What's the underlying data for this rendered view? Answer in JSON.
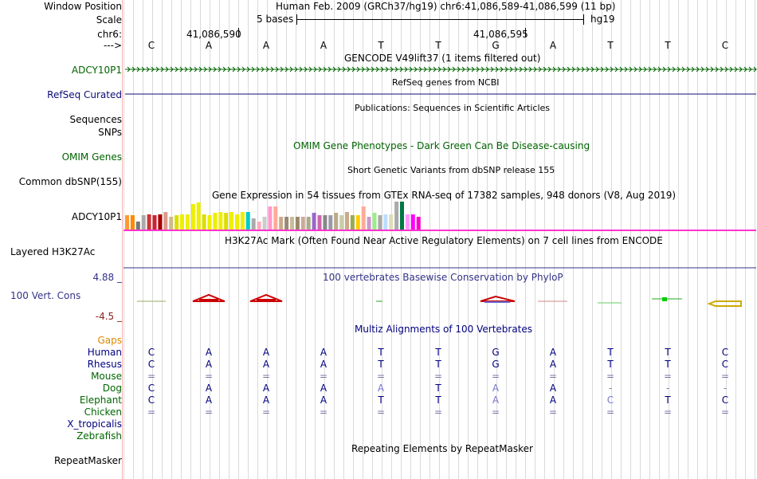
{
  "ruler": {
    "window_position_label": "Window Position",
    "window_position_value": "Human Feb. 2009 (GRCh37/hg19)   chr6:41,086,589-41,086,599 (11 bp)",
    "scale_label": "Scale",
    "scale_value": "5 bases",
    "scale_db": "hg19",
    "chrom_label": "chr6:",
    "coord_left": "41,086,590",
    "coord_right": "41,086,595",
    "strand_label": "--->",
    "bases": [
      "C",
      "A",
      "A",
      "A",
      "T",
      "T",
      "G",
      "A",
      "T",
      "T",
      "C"
    ]
  },
  "tracks": {
    "gencode": {
      "title": "GENCODE V49lift37 (1 items filtered out)",
      "item_label": "ADCY10P1"
    },
    "refseq": {
      "title": "RefSeq genes from NCBI",
      "label": "RefSeq Curated"
    },
    "publications": {
      "title": "Publications: Sequences in Scientific Articles",
      "label_sequences": "Sequences",
      "label_snps": "SNPs"
    },
    "omim": {
      "title": "OMIM Gene Phenotypes - Dark Green Can Be Disease-causing",
      "label": "OMIM Genes"
    },
    "dbsnp": {
      "title": "Short Genetic Variants from dbSNP release 155",
      "label": "Common dbSNP(155)"
    },
    "gtex": {
      "title": "Gene Expression in 54 tissues from GTEx RNA-seq of 17382 samples, 948 donors (V8, Aug 2019)",
      "label": "ADCY10P1",
      "bars": [
        {
          "v": 0.55,
          "c": "#ff9933"
        },
        {
          "v": 0.55,
          "c": "#ff8800"
        },
        {
          "v": 0.3,
          "c": "#777777"
        },
        {
          "v": 0.55,
          "c": "#aaaaaa"
        },
        {
          "v": 0.6,
          "c": "#cc3333"
        },
        {
          "v": 0.55,
          "c": "#cc2233"
        },
        {
          "v": 0.6,
          "c": "#aa0000"
        },
        {
          "v": 0.7,
          "c": "#dd9988"
        },
        {
          "v": 0.5,
          "c": "#ccbb88"
        },
        {
          "v": 0.55,
          "c": "#dddd00"
        },
        {
          "v": 0.6,
          "c": "#eeee00"
        },
        {
          "v": 0.6,
          "c": "#eeee00"
        },
        {
          "v": 1.0,
          "c": "#eeee00"
        },
        {
          "v": 1.05,
          "c": "#eeee00"
        },
        {
          "v": 0.6,
          "c": "#dddd00"
        },
        {
          "v": 0.55,
          "c": "#eeee00"
        },
        {
          "v": 0.65,
          "c": "#eeee00"
        },
        {
          "v": 0.7,
          "c": "#eeee00"
        },
        {
          "v": 0.65,
          "c": "#dddd00"
        },
        {
          "v": 0.7,
          "c": "#eeee00"
        },
        {
          "v": 0.6,
          "c": "#eeee00"
        },
        {
          "v": 0.7,
          "c": "#eeee00"
        },
        {
          "v": 0.7,
          "c": "#00cccc"
        },
        {
          "v": 0.45,
          "c": "#aaaaaa"
        },
        {
          "v": 0.3,
          "c": "#ffaabb"
        },
        {
          "v": 0.5,
          "c": "#cccccc"
        },
        {
          "v": 0.9,
          "c": "#ff99cc"
        },
        {
          "v": 0.9,
          "c": "#ffaa99"
        },
        {
          "v": 0.5,
          "c": "#ccaa88"
        },
        {
          "v": 0.5,
          "c": "#998877"
        },
        {
          "v": 0.5,
          "c": "#ccbb99"
        },
        {
          "v": 0.5,
          "c": "#998866"
        },
        {
          "v": 0.5,
          "c": "#ccaa99"
        },
        {
          "v": 0.5,
          "c": "#aaaa88"
        },
        {
          "v": 0.65,
          "c": "#9966cc"
        },
        {
          "v": 0.55,
          "c": "#cc66aa"
        },
        {
          "v": 0.55,
          "c": "#888888"
        },
        {
          "v": 0.55,
          "c": "#9999aa"
        },
        {
          "v": 0.65,
          "c": "#bbaa88"
        },
        {
          "v": 0.55,
          "c": "#ccccaa"
        },
        {
          "v": 0.7,
          "c": "#ccaa88"
        },
        {
          "v": 0.55,
          "c": "#99aa55"
        },
        {
          "v": 0.55,
          "c": "#ffcc00"
        },
        {
          "v": 0.9,
          "c": "#ffaa99"
        },
        {
          "v": 0.5,
          "c": "#cc99cc"
        },
        {
          "v": 0.65,
          "c": "#99ee88"
        },
        {
          "v": 0.55,
          "c": "#aaaaaa"
        },
        {
          "v": 0.6,
          "c": "#bbddff"
        },
        {
          "v": 0.6,
          "c": "#ddddbb"
        },
        {
          "v": 1.1,
          "c": "#aaaaaa"
        },
        {
          "v": 1.1,
          "c": "#007744"
        },
        {
          "v": 0.6,
          "c": "#ff99ff"
        },
        {
          "v": 0.6,
          "c": "#ff00ff"
        },
        {
          "v": 0.5,
          "c": "#ff00cc"
        }
      ]
    },
    "h3k27ac": {
      "title": "H3K27Ac Mark (Often Found Near Active Regulatory Elements) on 7 cell lines from ENCODE",
      "label": "Layered H3K27Ac"
    },
    "conservation": {
      "title": "100 vertebrates Basewise Conservation by PhyloP",
      "label": "100 Vert. Cons",
      "max_label": "4.88 _",
      "min_label": "-4.5 _"
    },
    "multiz": {
      "title": "Multiz Alignments of 100 Vertebrates",
      "gaps_label": "Gaps",
      "species": [
        {
          "name": "Human",
          "color": "#000080",
          "bases": [
            "C",
            "A",
            "A",
            "A",
            "T",
            "T",
            "G",
            "A",
            "T",
            "T",
            "C"
          ]
        },
        {
          "name": "Rhesus",
          "color": "#000080",
          "bases": [
            "C",
            "A",
            "A",
            "A",
            "T",
            "T",
            "G",
            "A",
            "T",
            "T",
            "C"
          ]
        },
        {
          "name": "Mouse",
          "color": "#006600",
          "bases": [
            "=",
            "=",
            "=",
            "=",
            "=",
            "=",
            "=",
            "=",
            "=",
            "=",
            "="
          ]
        },
        {
          "name": "Dog",
          "color": "#006600",
          "bases": [
            "C",
            "A",
            "A",
            "A",
            "A",
            "T",
            "A",
            "A",
            "-",
            "-",
            "-"
          ]
        },
        {
          "name": "Elephant",
          "color": "#006600",
          "bases": [
            "C",
            "A",
            "A",
            "A",
            "T",
            "T",
            "A",
            "A",
            "C",
            "T",
            "C"
          ]
        },
        {
          "name": "Chicken",
          "color": "#006600",
          "bases": [
            "=",
            "=",
            "=",
            "=",
            "=",
            "=",
            "=",
            "=",
            "=",
            "=",
            "="
          ]
        },
        {
          "name": "X_tropicalis",
          "color": "#000080",
          "bases": []
        },
        {
          "name": "Zebrafish",
          "color": "#006600",
          "bases": []
        }
      ]
    },
    "repeatmasker": {
      "title": "Repeating Elements by RepeatMasker",
      "label": "RepeatMasker"
    }
  },
  "colors": {
    "gene": "#006400",
    "refseq": "#0c0c78",
    "gtex_line": "#ff33cc",
    "h3k27ac_line": "#333388",
    "cons_pos": "#cc0000",
    "gaps": "#dd8800"
  }
}
